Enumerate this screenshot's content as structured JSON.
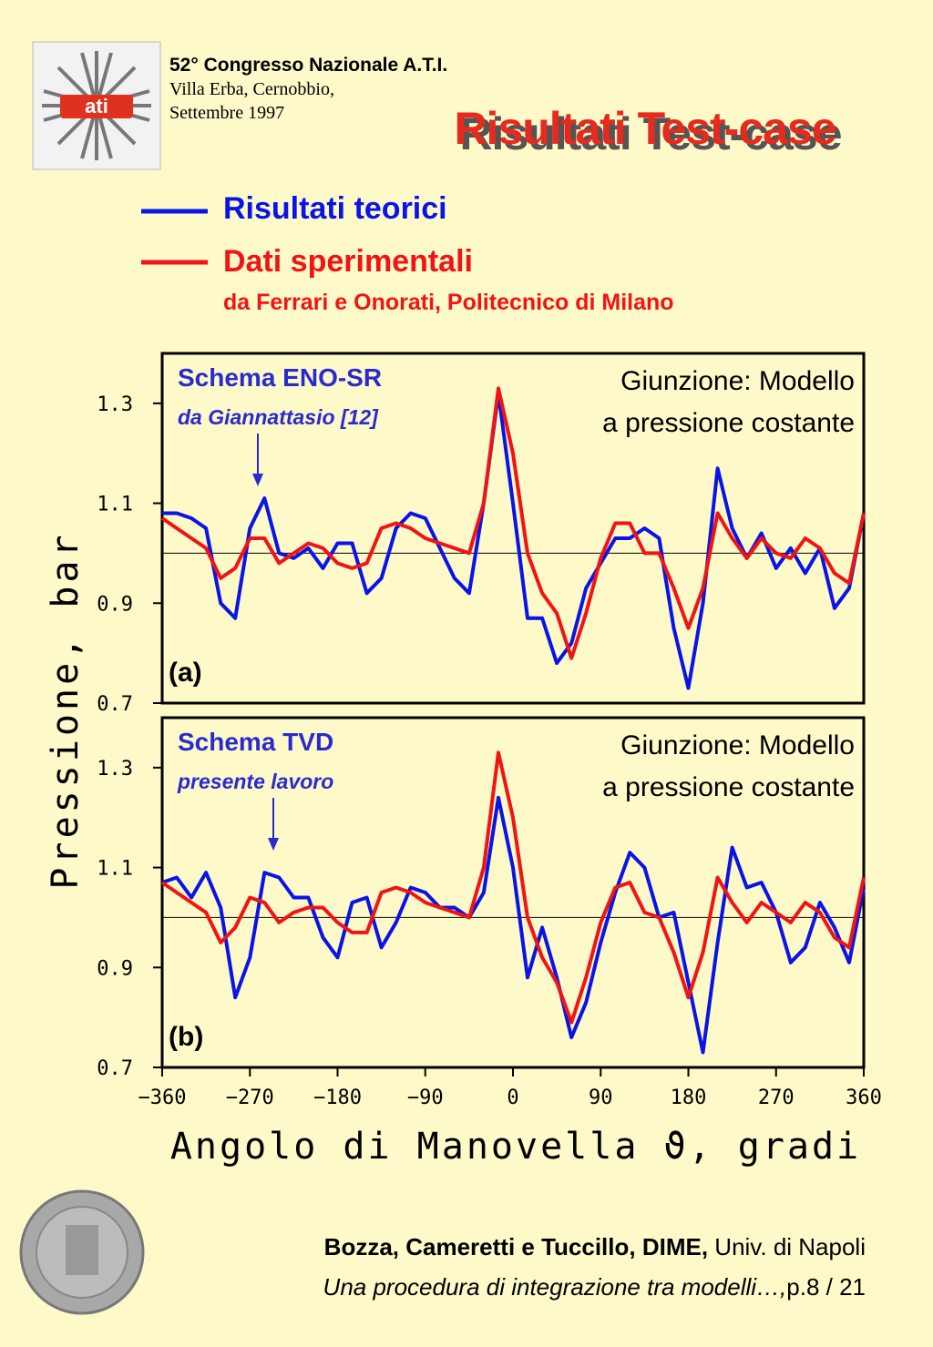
{
  "header": {
    "logo_text": "ati",
    "congress": "52° Congresso Nazionale A.T.I.",
    "place": "Villa Erba, Cernobbio,",
    "date": "Settembre 1997",
    "title": "Risultati Test-case"
  },
  "legend_note": "da Ferrari e Onorati, Politecnico di Milano",
  "ylabel": "Pressione, bar",
  "chart_data": [
    {
      "type": "line",
      "xlim": [
        -360,
        360
      ],
      "ylim": [
        0.7,
        1.4
      ],
      "yticks": [
        0.7,
        0.9,
        1.1,
        1.3
      ],
      "hline": 1,
      "annotations": {
        "scheme": "Schema ENO-SR",
        "source": "da Giannattasio [12]",
        "junction_1": "Giunzione: Modello",
        "junction_2": "a pressione costante",
        "panel": "(a)"
      },
      "x": [
        -360,
        -345,
        -330,
        -315,
        -300,
        -285,
        -270,
        -255,
        -240,
        -225,
        -210,
        -195,
        -180,
        -165,
        -150,
        -135,
        -120,
        -105,
        -90,
        -75,
        -60,
        -45,
        -30,
        -15,
        0,
        15,
        30,
        45,
        60,
        75,
        90,
        105,
        120,
        135,
        150,
        165,
        180,
        195,
        210,
        225,
        240,
        255,
        270,
        285,
        300,
        315,
        330,
        345,
        360
      ],
      "series": [
        {
          "name": "Risultati teorici",
          "color": "#0a14e6",
          "values": [
            1.08,
            1.08,
            1.07,
            1.05,
            0.9,
            0.87,
            1.05,
            1.11,
            1.0,
            0.99,
            1.01,
            0.97,
            1.02,
            1.02,
            0.92,
            0.95,
            1.05,
            1.08,
            1.07,
            1.01,
            0.95,
            0.92,
            1.1,
            1.32,
            1.1,
            0.87,
            0.87,
            0.78,
            0.82,
            0.93,
            0.98,
            1.03,
            1.03,
            1.05,
            1.03,
            0.85,
            0.73,
            0.9,
            1.17,
            1.05,
            0.99,
            1.04,
            0.97,
            1.01,
            0.96,
            1.01,
            0.89,
            0.93,
            1.08
          ]
        },
        {
          "name": "Dati sperimentali",
          "color": "#f01414",
          "values": [
            1.07,
            1.05,
            1.03,
            1.01,
            0.95,
            0.97,
            1.03,
            1.03,
            0.98,
            1.0,
            1.02,
            1.01,
            0.98,
            0.97,
            0.98,
            1.05,
            1.06,
            1.05,
            1.03,
            1.02,
            1.01,
            1.0,
            1.1,
            1.33,
            1.2,
            1.0,
            0.92,
            0.88,
            0.79,
            0.88,
            0.99,
            1.06,
            1.06,
            1.0,
            1.0,
            0.93,
            0.85,
            0.93,
            1.08,
            1.03,
            0.99,
            1.03,
            1.0,
            0.99,
            1.03,
            1.01,
            0.96,
            0.94,
            1.08
          ]
        }
      ]
    },
    {
      "type": "line",
      "xlim": [
        -360,
        360
      ],
      "ylim": [
        0.7,
        1.4
      ],
      "yticks": [
        0.7,
        0.9,
        1.1,
        1.3
      ],
      "hline": 1,
      "xticks": [
        {
          "value": -360,
          "label": "−360"
        },
        {
          "value": -270,
          "label": "−270"
        },
        {
          "value": -180,
          "label": "−180"
        },
        {
          "value": -90,
          "label": "−90"
        },
        0,
        90,
        180,
        270,
        360
      ],
      "xlabel": "Angolo di Manovella ϑ, gradi",
      "annotations": {
        "scheme": "Schema TVD",
        "source": "presente lavoro",
        "junction_1": "Giunzione: Modello",
        "junction_2": "a pressione costante",
        "panel": "(b)"
      },
      "x": [
        -360,
        -345,
        -330,
        -315,
        -300,
        -285,
        -270,
        -255,
        -240,
        -225,
        -210,
        -195,
        -180,
        -165,
        -150,
        -135,
        -120,
        -105,
        -90,
        -75,
        -60,
        -45,
        -30,
        -15,
        0,
        15,
        30,
        45,
        60,
        75,
        90,
        105,
        120,
        135,
        150,
        165,
        180,
        195,
        210,
        225,
        240,
        255,
        270,
        285,
        300,
        315,
        330,
        345,
        360
      ],
      "series": [
        {
          "color": "#0a14e6",
          "values": [
            1.07,
            1.08,
            1.04,
            1.09,
            1.02,
            0.84,
            0.92,
            1.09,
            1.08,
            1.04,
            1.04,
            0.96,
            0.92,
            1.03,
            1.04,
            0.94,
            0.99,
            1.06,
            1.05,
            1.02,
            1.02,
            1.0,
            1.05,
            1.24,
            1.1,
            0.88,
            0.98,
            0.88,
            0.76,
            0.83,
            0.95,
            1.05,
            1.13,
            1.1,
            1.0,
            1.01,
            0.87,
            0.73,
            0.95,
            1.14,
            1.06,
            1.07,
            1.01,
            0.91,
            0.94,
            1.03,
            0.98,
            0.91,
            1.06
          ]
        },
        {
          "color": "#f01414",
          "values": [
            1.07,
            1.05,
            1.03,
            1.01,
            0.95,
            0.98,
            1.04,
            1.03,
            0.99,
            1.01,
            1.02,
            1.02,
            0.99,
            0.97,
            0.97,
            1.05,
            1.06,
            1.05,
            1.03,
            1.02,
            1.01,
            1.0,
            1.1,
            1.33,
            1.2,
            1.0,
            0.92,
            0.87,
            0.79,
            0.88,
            0.99,
            1.06,
            1.07,
            1.01,
            1.0,
            0.93,
            0.84,
            0.93,
            1.08,
            1.03,
            0.99,
            1.03,
            1.01,
            0.99,
            1.03,
            1.01,
            0.96,
            0.94,
            1.08
          ]
        }
      ]
    }
  ],
  "footer": {
    "authors": "Bozza, Cameretti e Tuccillo, DIME,",
    "univ": " Univ. di Napoli",
    "work": "Una procedura di integrazione tra modelli…,",
    "page": "p.8 / 21"
  }
}
